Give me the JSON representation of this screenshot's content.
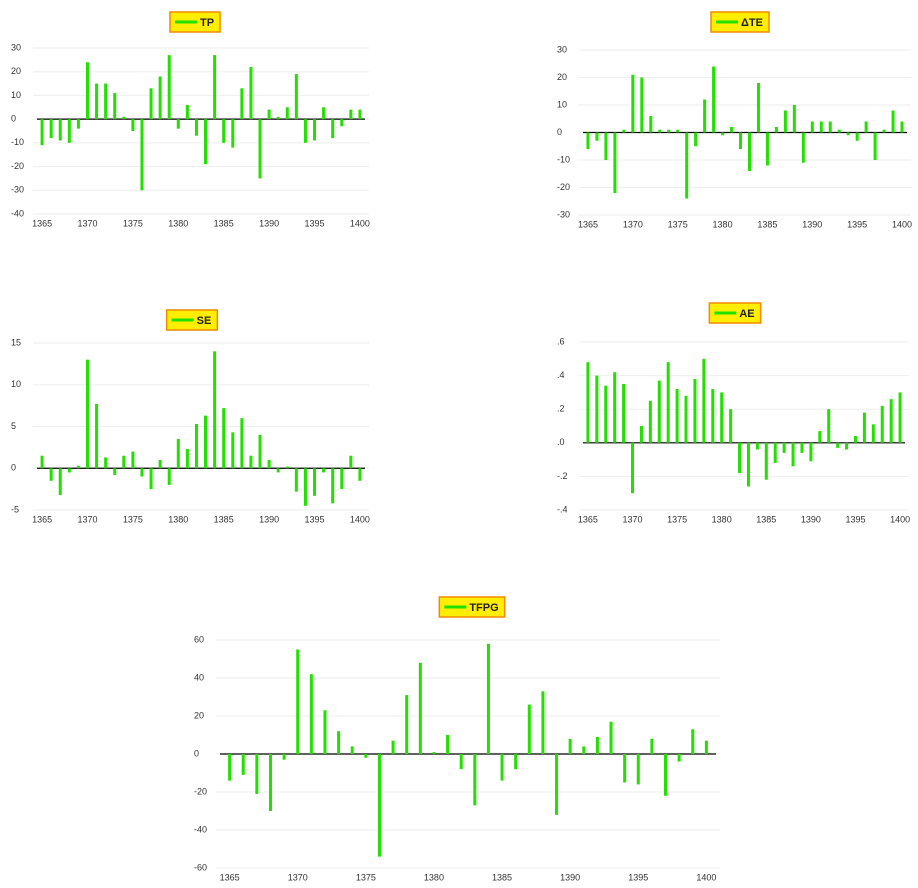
{
  "chart_data": [
    {
      "type": "bar",
      "series": [
        {
          "name": "TP",
          "color": "#22e000",
          "values": [
            -11,
            -8,
            -9,
            -10,
            -4,
            24,
            15,
            15,
            11,
            1,
            -5,
            -30,
            13,
            18,
            27,
            -4,
            6,
            -7,
            -19,
            27,
            -10,
            -12,
            13,
            22,
            -25,
            4,
            1,
            5,
            19,
            -10,
            -9,
            5,
            -8,
            -3,
            4,
            4
          ]
        }
      ],
      "x": [
        1365,
        1366,
        1367,
        1368,
        1369,
        1370,
        1371,
        1372,
        1373,
        1374,
        1375,
        1376,
        1377,
        1378,
        1379,
        1380,
        1381,
        1382,
        1383,
        1384,
        1385,
        1386,
        1387,
        1388,
        1389,
        1390,
        1391,
        1392,
        1393,
        1394,
        1395,
        1396,
        1397,
        1398,
        1399,
        1400
      ],
      "xlim": [
        1364,
        1401
      ],
      "xticks": [
        1365,
        1370,
        1375,
        1380,
        1385,
        1390,
        1395,
        1400
      ],
      "ylim": [
        -40,
        30
      ],
      "yticks": [
        30,
        20,
        10,
        0,
        -10,
        -20,
        -30,
        -40
      ],
      "grid": true
    },
    {
      "type": "bar",
      "series": [
        {
          "name": "ΔTE",
          "color": "#22e000",
          "values": [
            -6,
            -3,
            -10,
            -22,
            1,
            21,
            20,
            6,
            1,
            1,
            1,
            -24,
            -5,
            12,
            24,
            -1,
            2,
            -6,
            -14,
            18,
            -12,
            2,
            8,
            10,
            -11,
            4,
            4,
            4,
            1,
            -1,
            -3,
            4,
            -10,
            1,
            8,
            4
          ]
        }
      ],
      "x": [
        1365,
        1366,
        1367,
        1368,
        1369,
        1370,
        1371,
        1372,
        1373,
        1374,
        1375,
        1376,
        1377,
        1378,
        1379,
        1380,
        1381,
        1382,
        1383,
        1384,
        1385,
        1386,
        1387,
        1388,
        1389,
        1390,
        1391,
        1392,
        1393,
        1394,
        1395,
        1396,
        1397,
        1398,
        1399,
        1400
      ],
      "xlim": [
        1364,
        1401
      ],
      "xticks": [
        1365,
        1370,
        1375,
        1380,
        1385,
        1390,
        1395,
        1400
      ],
      "ylim": [
        -30,
        30
      ],
      "yticks": [
        30,
        20,
        10,
        0,
        -10,
        -20,
        -30
      ],
      "grid": true
    },
    {
      "type": "bar",
      "series": [
        {
          "name": "SE",
          "color": "#22e000",
          "values": [
            1.5,
            -1.5,
            -3.2,
            -0.5,
            0.3,
            13,
            7.7,
            1.3,
            -0.8,
            1.5,
            2,
            -1,
            -2.5,
            1,
            -2,
            3.5,
            2.3,
            5.3,
            6.3,
            14,
            7.2,
            4.3,
            6,
            1.5,
            4,
            1,
            -0.5,
            0.2,
            -2.8,
            -4.5,
            -3.3,
            -0.5,
            -4.2,
            -2.5,
            1.5,
            -1.5
          ]
        }
      ],
      "x": [
        1365,
        1366,
        1367,
        1368,
        1369,
        1370,
        1371,
        1372,
        1373,
        1374,
        1375,
        1376,
        1377,
        1378,
        1379,
        1380,
        1381,
        1382,
        1383,
        1384,
        1385,
        1386,
        1387,
        1388,
        1389,
        1390,
        1391,
        1392,
        1393,
        1394,
        1395,
        1396,
        1397,
        1398,
        1399,
        1400
      ],
      "xlim": [
        1364,
        1401
      ],
      "xticks": [
        1365,
        1370,
        1375,
        1380,
        1385,
        1390,
        1395,
        1400
      ],
      "ylim": [
        -5,
        15
      ],
      "yticks": [
        15,
        10,
        5,
        0,
        -5
      ],
      "grid": true
    },
    {
      "type": "bar",
      "series": [
        {
          "name": "AE",
          "color": "#22e000",
          "values": [
            0.48,
            0.4,
            0.34,
            0.42,
            0.35,
            -0.3,
            0.1,
            0.25,
            0.37,
            0.48,
            0.32,
            0.28,
            0.38,
            0.5,
            0.32,
            0.3,
            0.2,
            -0.18,
            -0.26,
            -0.04,
            -0.22,
            -0.12,
            -0.06,
            -0.14,
            -0.06,
            -0.11,
            0.07,
            0.2,
            -0.03,
            -0.04,
            0.04,
            0.18,
            0.11,
            0.22,
            0.26,
            0.3
          ]
        }
      ],
      "x": [
        1365,
        1366,
        1367,
        1368,
        1369,
        1370,
        1371,
        1372,
        1373,
        1374,
        1375,
        1376,
        1377,
        1378,
        1379,
        1380,
        1381,
        1382,
        1383,
        1384,
        1385,
        1386,
        1387,
        1388,
        1389,
        1390,
        1391,
        1392,
        1393,
        1394,
        1395,
        1396,
        1397,
        1398,
        1399,
        1400
      ],
      "xlim": [
        1364,
        1401
      ],
      "xticks": [
        1365,
        1370,
        1375,
        1380,
        1385,
        1390,
        1395,
        1400
      ],
      "ylim": [
        -0.4,
        0.6
      ],
      "yticks": [
        {
          "value": 0.6,
          "label": ".6"
        },
        {
          "value": 0.4,
          "label": ".4"
        },
        {
          "value": 0.2,
          "label": ".2"
        },
        {
          "value": 0,
          "label": ".0"
        },
        {
          "value": -0.2,
          "label": "-.2"
        },
        {
          "value": -0.4,
          "label": "-.4"
        }
      ],
      "grid": true
    },
    {
      "type": "bar",
      "series": [
        {
          "name": "TFPG",
          "color": "#22e000",
          "values": [
            -14,
            -11,
            -21,
            -30,
            -3,
            55,
            42,
            23,
            12,
            4,
            -2,
            -54,
            7,
            31,
            48,
            1,
            10,
            -8,
            -27,
            58,
            -14,
            -8,
            26,
            33,
            -32,
            8,
            4,
            9,
            17,
            -15,
            -16,
            8,
            -22,
            -4,
            13,
            7
          ]
        }
      ],
      "x": [
        1365,
        1366,
        1367,
        1368,
        1369,
        1370,
        1371,
        1372,
        1373,
        1374,
        1375,
        1376,
        1377,
        1378,
        1379,
        1380,
        1381,
        1382,
        1383,
        1384,
        1385,
        1386,
        1387,
        1388,
        1389,
        1390,
        1391,
        1392,
        1393,
        1394,
        1395,
        1396,
        1397,
        1398,
        1399,
        1400
      ],
      "xlim": [
        1364,
        1401
      ],
      "xticks": [
        1365,
        1370,
        1375,
        1380,
        1385,
        1390,
        1395,
        1400
      ],
      "ylim": [
        -60,
        60
      ],
      "yticks": [
        60,
        40,
        20,
        0,
        -20,
        -40,
        -60
      ],
      "grid": true
    }
  ]
}
